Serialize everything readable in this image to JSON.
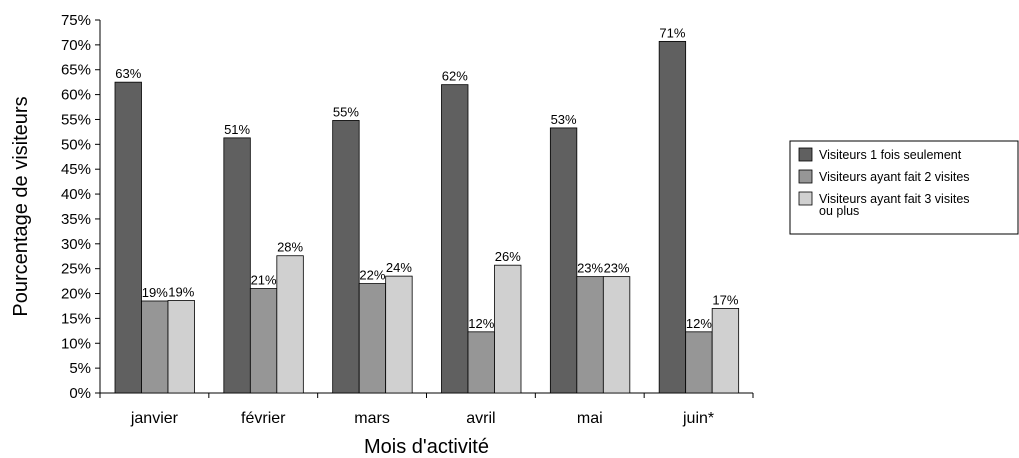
{
  "chart_data": {
    "type": "bar",
    "title": "",
    "xlabel": "Mois d'activité",
    "ylabel": "Pourcentage de visiteurs",
    "ylim": [
      0,
      75
    ],
    "ytick_step": 5,
    "ytick_suffix": "%",
    "grid": false,
    "legend_position": "right",
    "categories": [
      "janvier",
      "février",
      "mars",
      "avril",
      "mai",
      "juin*"
    ],
    "series": [
      {
        "name": "Visiteurs 1 fois seulement",
        "color": "#606060",
        "values": [
          62.5,
          51.3,
          54.8,
          62.0,
          53.3,
          70.7
        ],
        "labels": [
          "63%",
          "51%",
          "55%",
          "62%",
          "53%",
          "71%"
        ]
      },
      {
        "name": "Visiteurs ayant fait 2 visites",
        "color": "#969696",
        "values": [
          18.5,
          21.0,
          22.0,
          12.3,
          23.4,
          12.3
        ],
        "labels": [
          "19%",
          "21%",
          "22%",
          "12%",
          "23%",
          "12%"
        ]
      },
      {
        "name": "Visiteurs ayant fait 3 visites ou plus",
        "color": "#d0d0d0",
        "values": [
          18.6,
          27.6,
          23.5,
          25.7,
          23.4,
          17.0
        ],
        "labels": [
          "19%",
          "28%",
          "24%",
          "26%",
          "23%",
          "17%"
        ]
      }
    ]
  }
}
